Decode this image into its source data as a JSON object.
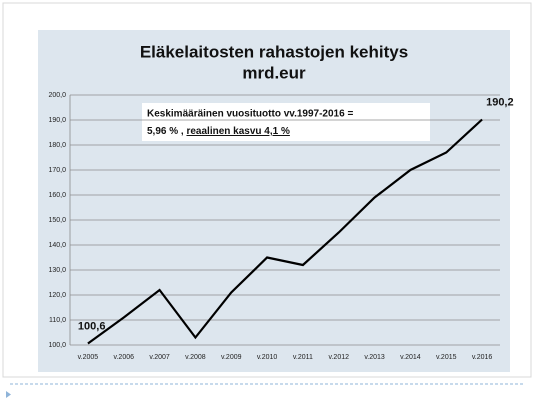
{
  "chart_data": {
    "type": "line",
    "title": "Eläkelaitosten rahastojen kehitys",
    "subtitle": "mrd.eur",
    "annotation": {
      "line1": "Keskimääräinen vuosituotto vv.1997-2016 =",
      "line2a": "5,96 % , ",
      "line2b": "reaalinen kasvu 4,1 %"
    },
    "categories": [
      "v.2005",
      "v.2006",
      "v.2007",
      "v.2008",
      "v.2009",
      "v.2010",
      "v.2011",
      "v.2012",
      "v.2013",
      "v.2014",
      "v.2015",
      "v.2016"
    ],
    "values": [
      100.6,
      111,
      122,
      103,
      121,
      135,
      132,
      145,
      159,
      170,
      177,
      190.2
    ],
    "value_labels": [
      "100,6",
      null,
      null,
      null,
      null,
      null,
      null,
      null,
      null,
      null,
      null,
      "190,2"
    ],
    "color": "#000000",
    "ylim": [
      100,
      200
    ],
    "yticks": [
      {
        "value": 100,
        "label": "100,0"
      },
      {
        "value": 110,
        "label": "110,0"
      },
      {
        "value": 120,
        "label": "120,0"
      },
      {
        "value": 130,
        "label": "130,0"
      },
      {
        "value": 140,
        "label": "140,0"
      },
      {
        "value": 150,
        "label": "150,0"
      },
      {
        "value": 160,
        "label": "160,0"
      },
      {
        "value": 170,
        "label": "170,0"
      },
      {
        "value": 180,
        "label": "180,0"
      },
      {
        "value": 190,
        "label": "190,0"
      },
      {
        "value": 200,
        "label": "200,0"
      }
    ],
    "grid": true
  }
}
